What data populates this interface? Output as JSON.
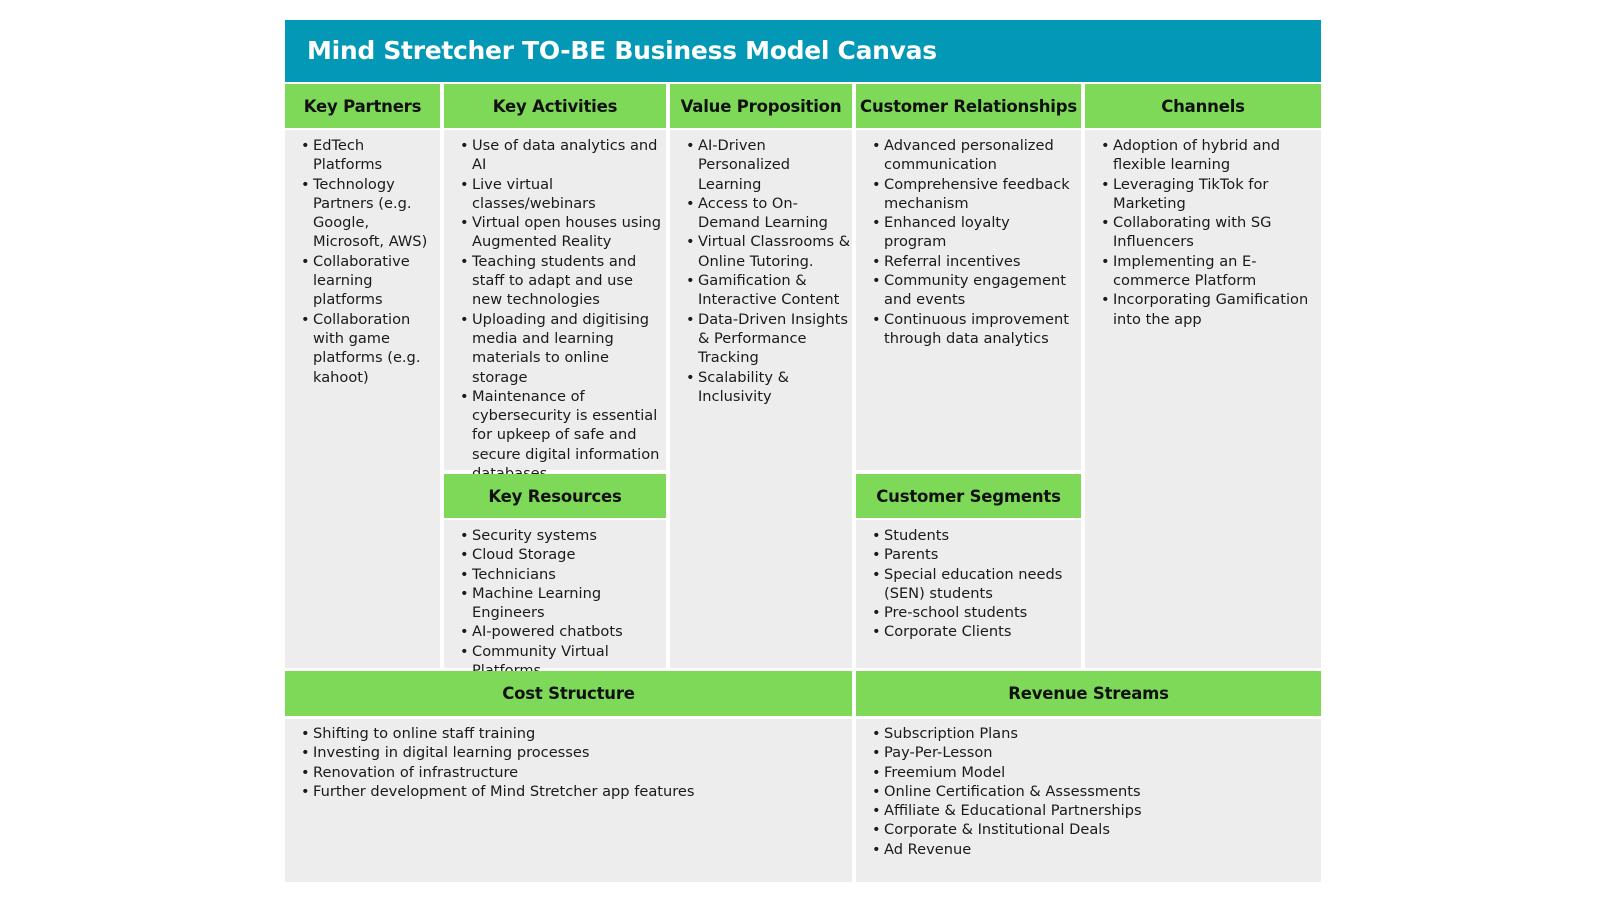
{
  "title": "Mind Stretcher TO-BE Business Model Canvas",
  "colors": {
    "title_bar": "#0399b6",
    "header": "#7dd957",
    "box": "#ededed"
  },
  "sections": {
    "key_partners": {
      "title": "Key Partners",
      "items": [
        "EdTech Platforms",
        "Technology Partners (e.g. Google, Microsoft, AWS)",
        "Collaborative learning platforms",
        "Collaboration with game platforms (e.g. kahoot)"
      ]
    },
    "key_activities": {
      "title": "Key Activities",
      "items": [
        "Use of data analytics and AI",
        "Live virtual classes/webinars",
        "Virtual open houses using Augmented Reality",
        "Teaching students and staff to adapt and use new technologies",
        "Uploading and digitising media and learning materials to online storage",
        "Maintenance of cybersecurity is essential for upkeep of safe and secure digital information databases"
      ],
      "sub_bullet": "○"
    },
    "value_proposition": {
      "title": "Value Proposition",
      "items": [
        "AI-Driven Personalized Learning",
        "Access to On-Demand Learning",
        "Virtual Classrooms & Online Tutoring.",
        "Gamification & Interactive Content",
        "Data-Driven Insights & Performance Tracking",
        "Scalability & Inclusivity"
      ]
    },
    "customer_relationships": {
      "title": "Customer Relationships",
      "items": [
        "Advanced personalized communication",
        "Comprehensive feedback mechanism",
        "Enhanced loyalty program",
        "Referral incentives",
        "Community engagement and events",
        "Continuous improvement through data analytics"
      ]
    },
    "channels": {
      "title": "Channels",
      "items": [
        "Adoption of hybrid and flexible learning",
        "Leveraging TikTok for Marketing",
        "Collaborating with SG Influencers",
        "Implementing an E-commerce Platform",
        "Incorporating Gamification into the app"
      ]
    },
    "key_resources": {
      "title": "Key Resources",
      "items": [
        "Security systems",
        "Cloud Storage",
        "Technicians",
        "Machine Learning Engineers",
        "AI-powered chatbots",
        "Community Virtual Platforms"
      ]
    },
    "customer_segments": {
      "title": "Customer Segments",
      "items": [
        "Students",
        "Parents",
        "Special education needs (SEN) students",
        "Pre-school students",
        "Corporate Clients"
      ]
    },
    "cost_structure": {
      "title": "Cost Structure",
      "items": [
        "Shifting to online staff training",
        "Investing in digital learning processes",
        "Renovation of infrastructure",
        "Further development of Mind Stretcher app features"
      ]
    },
    "revenue_streams": {
      "title": "Revenue Streams",
      "items": [
        "Subscription Plans",
        "Pay-Per-Lesson",
        "Freemium Model",
        "Online Certification & Assessments",
        "Affiliate & Educational Partnerships",
        "Corporate & Institutional Deals",
        "Ad Revenue"
      ]
    }
  }
}
